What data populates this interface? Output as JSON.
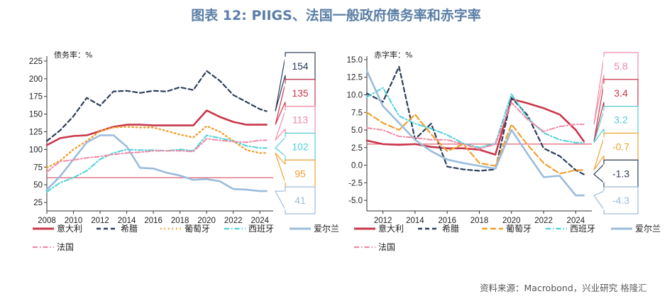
{
  "title": "图表 12: PIIGS、法国一般政府债务率和赤字率",
  "source": "资料来源：Macrobond，兴业研究",
  "watermark": "格隆汇",
  "colors": {
    "italy": "#c8374b",
    "greece": "#2c3e5a",
    "portugal": "#f0a030",
    "spain": "#4dd0d8",
    "ireland": "#9bbcdc",
    "france": "#f08aa5",
    "refline": "#e06070"
  },
  "chart_data": [
    {
      "type": "line",
      "unit_label": "债务率：%",
      "xlim": [
        2008,
        2025
      ],
      "ylim": [
        13,
        232
      ],
      "xticks": [
        2008,
        2010,
        2012,
        2014,
        2016,
        2018,
        2020,
        2022,
        2024
      ],
      "yticks": [
        25,
        50,
        75,
        100,
        125,
        150,
        175,
        200,
        225
      ],
      "reference_line": 60,
      "series": [
        {
          "name": "意大利",
          "key": "italy",
          "style": "solid",
          "x": [
            2008,
            2009,
            2010,
            2011,
            2012,
            2013,
            2014,
            2015,
            2016,
            2017,
            2018,
            2019,
            2020,
            2021,
            2022,
            2023,
            2024,
            2024.5
          ],
          "y": [
            106,
            116,
            119,
            120,
            126,
            132,
            135,
            135,
            134,
            134,
            134,
            134,
            155,
            146,
            139,
            135,
            135,
            135
          ]
        },
        {
          "name": "希腊",
          "key": "greece",
          "style": "dash",
          "x": [
            2008,
            2009,
            2010,
            2011,
            2012,
            2013,
            2014,
            2015,
            2016,
            2017,
            2018,
            2019,
            2020,
            2021,
            2022,
            2023,
            2024,
            2024.5
          ],
          "y": [
            112,
            127,
            147,
            173,
            162,
            182,
            183,
            180,
            183,
            182,
            188,
            184,
            211,
            197,
            177,
            167,
            157,
            154
          ]
        },
        {
          "name": "葡萄牙",
          "key": "portugal",
          "style": "dot",
          "x": [
            2008,
            2009,
            2010,
            2011,
            2012,
            2013,
            2014,
            2015,
            2016,
            2017,
            2018,
            2019,
            2020,
            2021,
            2022,
            2023,
            2024,
            2024.5
          ],
          "y": [
            74,
            84,
            100,
            112,
            126,
            131,
            132,
            131,
            131,
            126,
            121,
            117,
            133,
            125,
            112,
            99,
            95,
            95
          ]
        },
        {
          "name": "西班牙",
          "key": "spain",
          "style": "dashdot",
          "x": [
            2008,
            2009,
            2010,
            2011,
            2012,
            2013,
            2014,
            2015,
            2016,
            2017,
            2018,
            2019,
            2020,
            2021,
            2022,
            2023,
            2024,
            2024.5
          ],
          "y": [
            40,
            53,
            60,
            70,
            86,
            95,
            100,
            99,
            99,
            98,
            100,
            98,
            120,
            116,
            112,
            105,
            102,
            102
          ]
        },
        {
          "name": "爱尔兰",
          "key": "ireland",
          "style": "solid",
          "x": [
            2008,
            2009,
            2010,
            2011,
            2012,
            2013,
            2014,
            2015,
            2016,
            2017,
            2018,
            2019,
            2020,
            2021,
            2022,
            2023,
            2024,
            2024.5
          ],
          "y": [
            43,
            62,
            86,
            110,
            120,
            120,
            104,
            74,
            73,
            67,
            63,
            57,
            58,
            55,
            44,
            43,
            41,
            41
          ]
        },
        {
          "name": "法国",
          "key": "france",
          "style": "dashdot",
          "x": [
            2008,
            2009,
            2010,
            2011,
            2012,
            2013,
            2014,
            2015,
            2016,
            2017,
            2018,
            2019,
            2020,
            2021,
            2022,
            2023,
            2024,
            2024.5
          ],
          "y": [
            68,
            83,
            85,
            88,
            90,
            93,
            95,
            96,
            98,
            98,
            98,
            97,
            115,
            113,
            111,
            110,
            113,
            113
          ]
        }
      ],
      "callouts": [
        {
          "label": "154",
          "key": "greece",
          "value": 154,
          "color": "#2c3e5a"
        },
        {
          "label": "135",
          "key": "italy",
          "value": 135,
          "color": "#c8374b"
        },
        {
          "label": "113",
          "key": "france",
          "value": 113,
          "color": "#f08aa5"
        },
        {
          "label": "102",
          "key": "spain",
          "value": 102,
          "color": "#4dd0d8"
        },
        {
          "label": "95",
          "key": "portugal",
          "value": 95,
          "color": "#f0a030"
        },
        {
          "label": "41",
          "key": "ireland",
          "value": 41,
          "color": "#9bbcdc"
        }
      ]
    },
    {
      "type": "line",
      "unit_label": "赤字率：%",
      "xlim": [
        2011,
        2025
      ],
      "ylim": [
        -6.5,
        15.5
      ],
      "xticks": [
        2012,
        2014,
        2016,
        2018,
        2020,
        2022,
        2024
      ],
      "yticks": [
        15.0,
        12.5,
        10.0,
        7.5,
        5.0,
        2.5,
        0.0,
        -2.5,
        -5.0
      ],
      "reference_line": 3,
      "series": [
        {
          "name": "意大利",
          "key": "italy",
          "style": "solid",
          "x": [
            2011,
            2012,
            2013,
            2014,
            2015,
            2016,
            2017,
            2018,
            2019,
            2020,
            2021,
            2022,
            2023,
            2024,
            2024.5
          ],
          "y": [
            3.5,
            3.0,
            2.9,
            3.0,
            2.6,
            2.4,
            2.4,
            2.2,
            1.5,
            9.4,
            8.8,
            8.1,
            7.2,
            5.0,
            3.4
          ]
        },
        {
          "name": "希腊",
          "key": "greece",
          "style": "dash",
          "x": [
            2011,
            2012,
            2013,
            2014,
            2015,
            2016,
            2017,
            2018,
            2019,
            2020,
            2021,
            2022,
            2023,
            2024,
            2024.5
          ],
          "y": [
            10.2,
            9.0,
            14.0,
            3.7,
            5.9,
            -0.2,
            -0.6,
            -0.8,
            -0.6,
            9.6,
            7.1,
            2.4,
            1.3,
            -0.7,
            -1.3
          ]
        },
        {
          "name": "葡萄牙",
          "key": "portugal",
          "style": "longdash",
          "x": [
            2011,
            2012,
            2013,
            2014,
            2015,
            2016,
            2017,
            2018,
            2019,
            2020,
            2021,
            2022,
            2023,
            2024,
            2024.5
          ],
          "y": [
            7.5,
            6.0,
            5.0,
            7.2,
            4.4,
            2.0,
            3.0,
            0.3,
            -0.1,
            5.8,
            2.9,
            0.3,
            -1.2,
            -0.7,
            -0.7
          ]
        },
        {
          "name": "西班牙",
          "key": "spain",
          "style": "dashdot",
          "x": [
            2011,
            2012,
            2013,
            2014,
            2015,
            2016,
            2017,
            2018,
            2019,
            2020,
            2021,
            2022,
            2023,
            2024,
            2024.5
          ],
          "y": [
            9.7,
            11.0,
            7.0,
            5.9,
            5.2,
            4.3,
            3.1,
            2.5,
            3.1,
            10.1,
            6.7,
            4.6,
            3.6,
            3.2,
            3.2
          ]
        },
        {
          "name": "爱尔兰",
          "key": "ireland",
          "style": "solid",
          "x": [
            2011,
            2012,
            2013,
            2014,
            2015,
            2016,
            2017,
            2018,
            2019,
            2020,
            2021,
            2022,
            2023,
            2024,
            2024.5
          ],
          "y": [
            13.4,
            8.4,
            6.0,
            3.6,
            2.0,
            0.8,
            0.3,
            -0.1,
            -0.5,
            5.0,
            1.6,
            -1.7,
            -1.5,
            -4.3,
            -4.3
          ]
        },
        {
          "name": "法国",
          "key": "france",
          "style": "dashdot",
          "x": [
            2011,
            2012,
            2013,
            2014,
            2015,
            2016,
            2017,
            2018,
            2019,
            2020,
            2021,
            2022,
            2023,
            2024,
            2024.5
          ],
          "y": [
            5.3,
            5.0,
            4.1,
            3.9,
            3.6,
            3.6,
            3.0,
            2.3,
            3.0,
            8.9,
            6.5,
            4.8,
            5.5,
            5.8,
            5.8
          ]
        }
      ],
      "callouts": [
        {
          "label": "5.8",
          "key": "france",
          "value": 5.8,
          "color": "#f08aa5"
        },
        {
          "label": "3.4",
          "key": "italy",
          "value": 3.4,
          "color": "#c8374b"
        },
        {
          "label": "3.2",
          "key": "spain",
          "value": 3.2,
          "color": "#4dd0d8"
        },
        {
          "label": "-0.7",
          "key": "portugal",
          "value": -0.7,
          "color": "#f0a030"
        },
        {
          "label": "-1.3",
          "key": "greece",
          "value": -1.3,
          "color": "#2c3e5a"
        },
        {
          "label": "-4.3",
          "key": "ireland",
          "value": -4.3,
          "color": "#9bbcdc"
        }
      ]
    }
  ]
}
